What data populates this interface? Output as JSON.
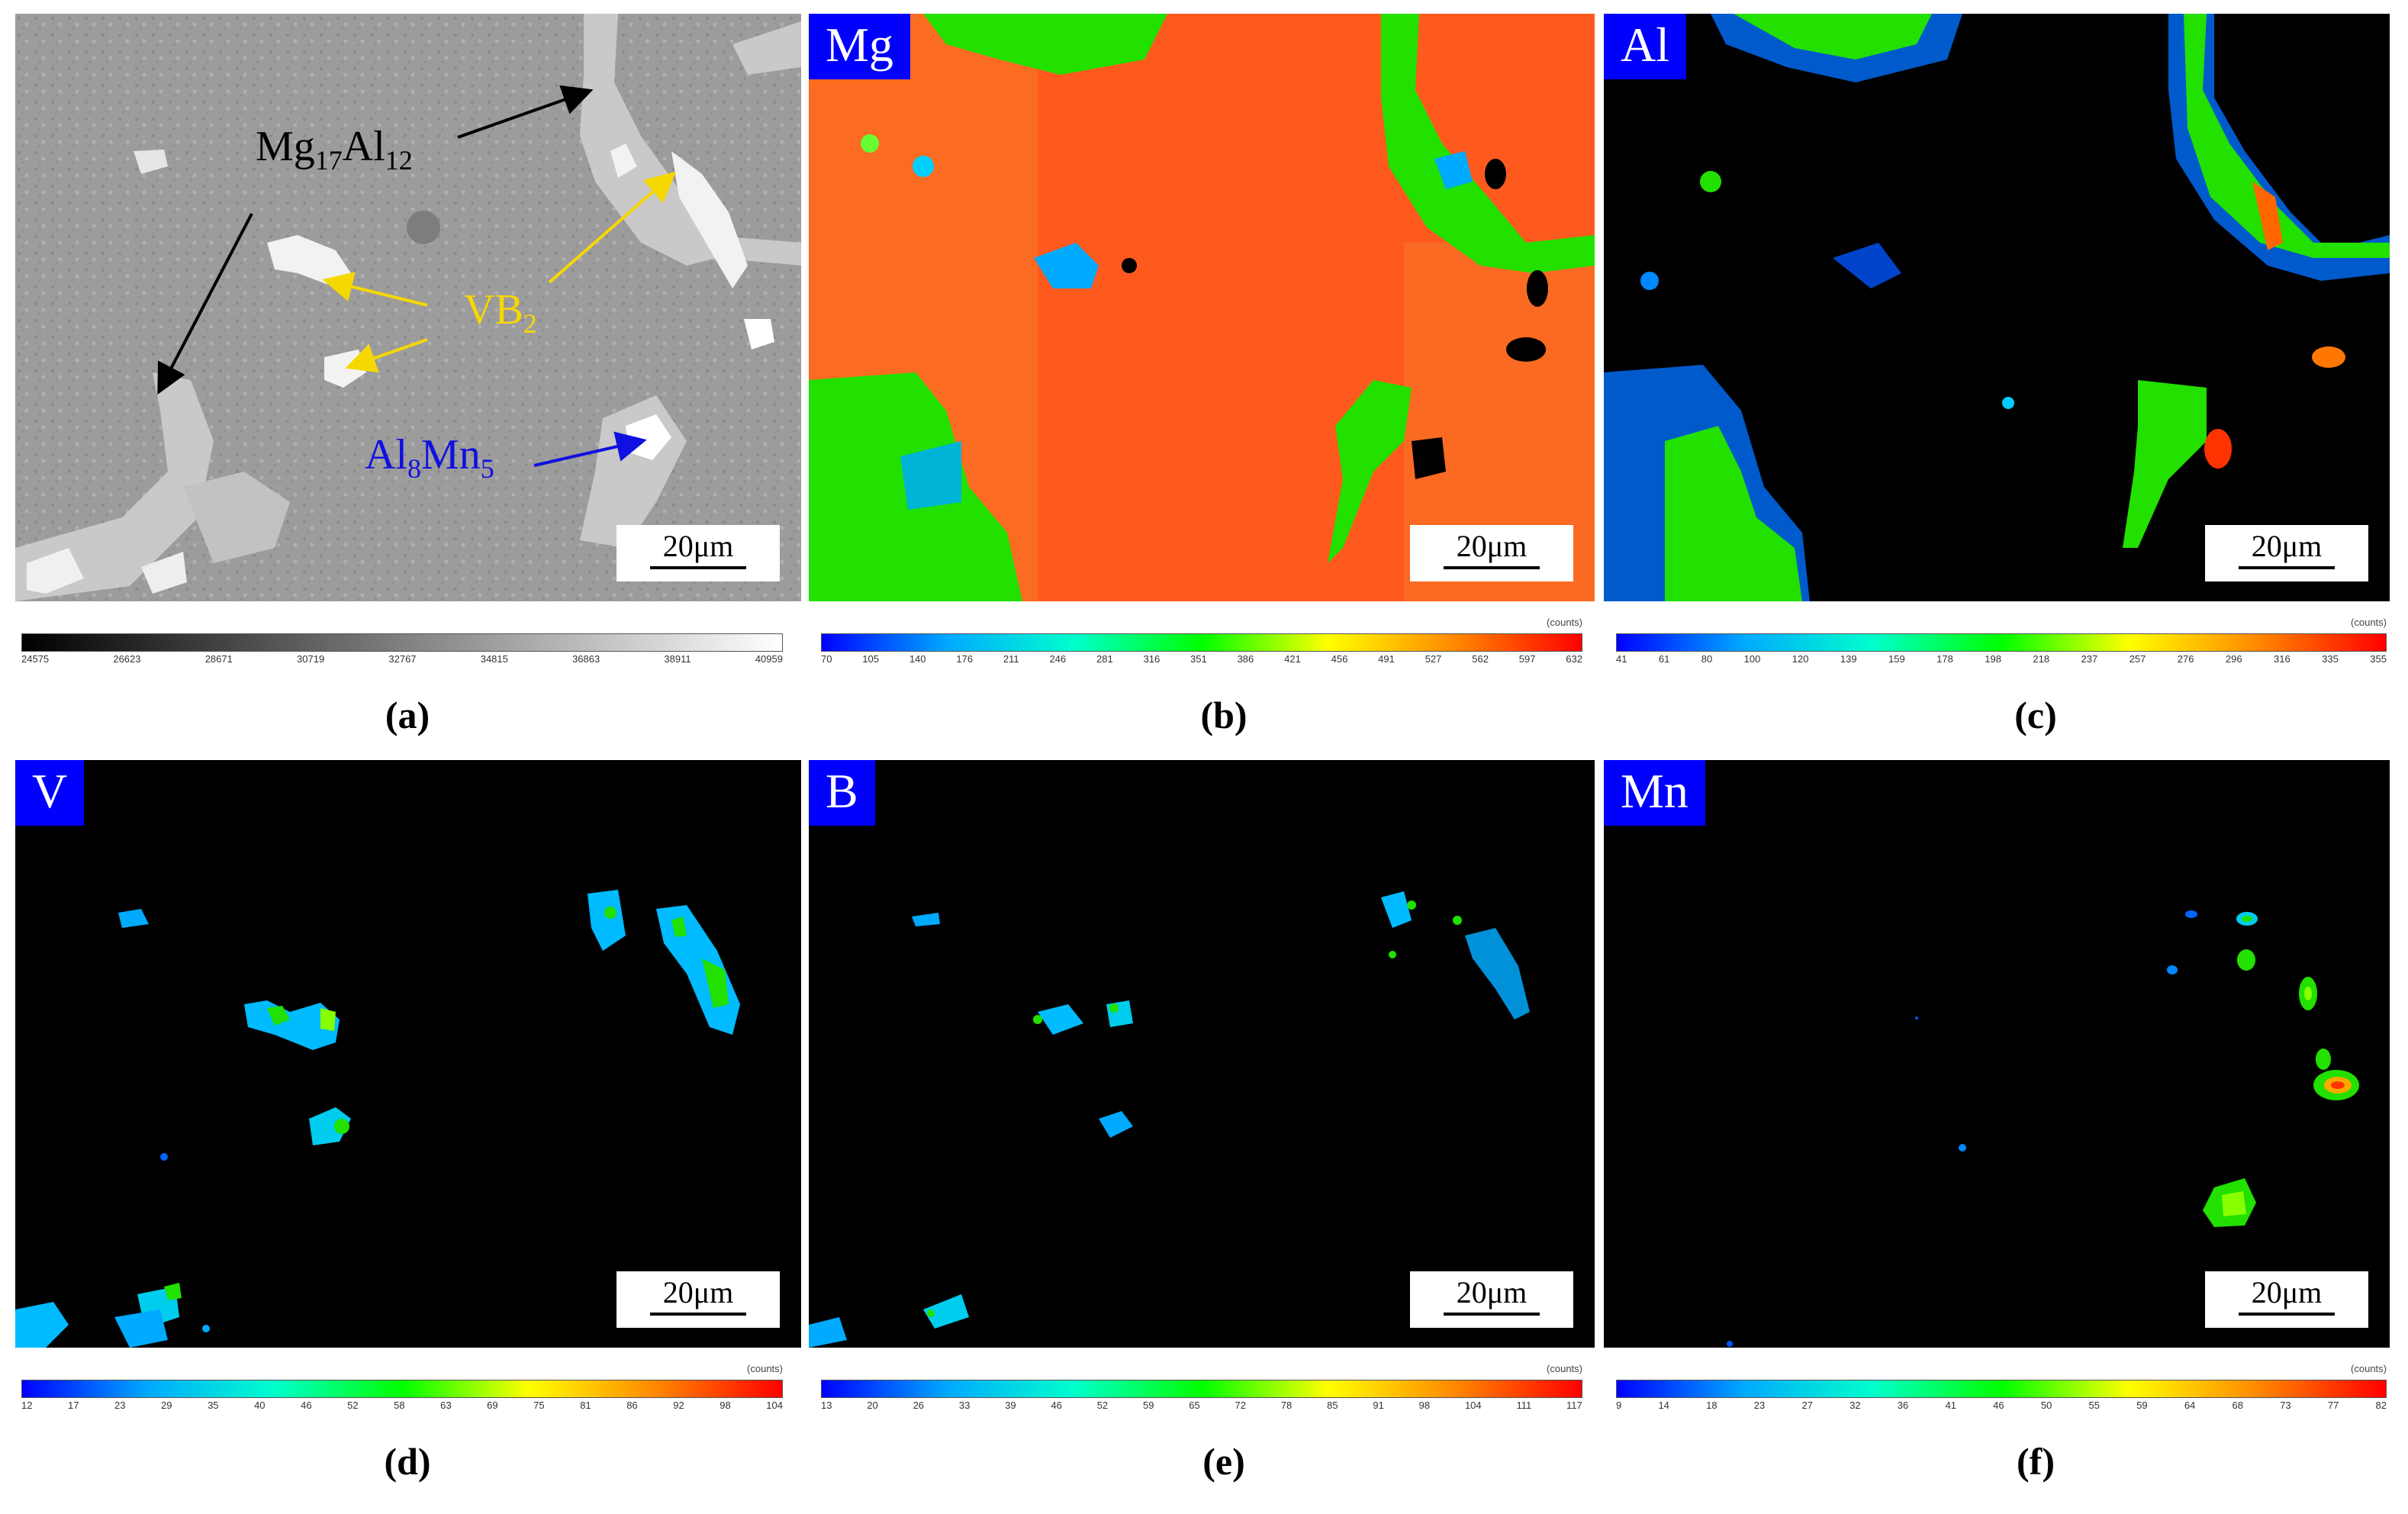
{
  "panels": {
    "a": {
      "label": "(a)",
      "scale": "20μm"
    },
    "b": {
      "element": "Mg",
      "label": "(b)",
      "scale": "20μm"
    },
    "c": {
      "element": "Al",
      "label": "(c)",
      "scale": "20μm"
    },
    "d": {
      "element": "V",
      "label": "(d)",
      "scale": "20μm"
    },
    "e": {
      "element": "B",
      "label": "(e)",
      "scale": "20μm"
    },
    "f": {
      "element": "Mn",
      "label": "(f)",
      "scale": "20μm"
    }
  },
  "annotations": {
    "mg17al12": {
      "base1": "Mg",
      "sub1": "17",
      "base2": "Al",
      "sub2": "12",
      "color": "#000000"
    },
    "vb2": {
      "base": "VB",
      "sub": "2",
      "color": "#f5d800"
    },
    "al8mn5": {
      "base1": "Al",
      "sub1": "8",
      "base2": "Mn",
      "sub2": "5",
      "color": "#1010e0"
    }
  },
  "colorbars": {
    "a": {
      "counts": "",
      "ticks": [
        "24575",
        "26623",
        "28671",
        "30719",
        "32767",
        "34815",
        "36863",
        "38911",
        "40959"
      ]
    },
    "b": {
      "counts": "(counts)",
      "ticks": [
        "70",
        "105",
        "140",
        "176",
        "211",
        "246",
        "281",
        "316",
        "351",
        "386",
        "421",
        "456",
        "491",
        "527",
        "562",
        "597",
        "632"
      ]
    },
    "c": {
      "counts": "(counts)",
      "ticks": [
        "41",
        "61",
        "80",
        "100",
        "120",
        "139",
        "159",
        "178",
        "198",
        "218",
        "237",
        "257",
        "276",
        "296",
        "316",
        "335",
        "355"
      ]
    },
    "d": {
      "counts": "(counts)",
      "ticks": [
        "12",
        "17",
        "23",
        "29",
        "35",
        "40",
        "46",
        "52",
        "58",
        "63",
        "69",
        "75",
        "81",
        "86",
        "92",
        "98",
        "104"
      ]
    },
    "e": {
      "counts": "(counts)",
      "ticks": [
        "13",
        "20",
        "26",
        "33",
        "39",
        "46",
        "52",
        "59",
        "65",
        "72",
        "78",
        "85",
        "91",
        "98",
        "104",
        "111",
        "117"
      ]
    },
    "f": {
      "counts": "(counts)",
      "ticks": [
        "9",
        "14",
        "18",
        "23",
        "27",
        "32",
        "36",
        "41",
        "46",
        "50",
        "55",
        "59",
        "64",
        "68",
        "73",
        "77",
        "82"
      ]
    }
  }
}
